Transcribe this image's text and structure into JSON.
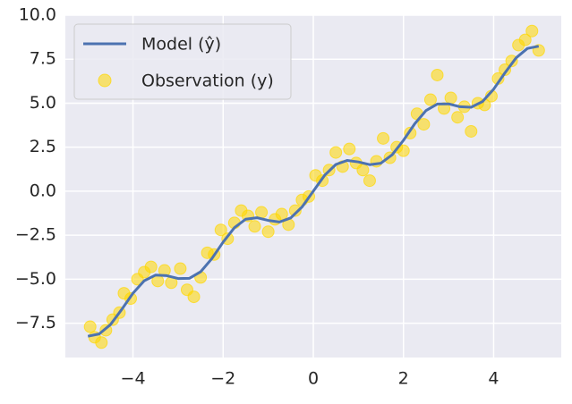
{
  "chart_data": {
    "type": "line_scatter",
    "xlim": [
      -5.5,
      5.5
    ],
    "ylim": [
      -9.45,
      10
    ],
    "xticks": [
      {
        "value": -4,
        "label": "−4"
      },
      {
        "value": -2,
        "label": "−2"
      },
      0,
      2,
      4
    ],
    "yticks": [
      {
        "value": -7.5,
        "label": "−7.5"
      },
      {
        "value": -5,
        "label": "−5.0"
      },
      {
        "value": -2.5,
        "label": "−2.5"
      },
      {
        "value": 0,
        "label": "0.0"
      },
      2.5,
      {
        "value": 5,
        "label": "5.0"
      },
      7.5,
      {
        "value": 10,
        "label": "10.0"
      }
    ],
    "grid": true,
    "legend": "upper left",
    "series": [
      {
        "name": "Model (ŷ)",
        "kind": "line",
        "color": "#4c72b0",
        "x": [
          -5,
          -4.75,
          -4.5,
          -4.25,
          -4,
          -3.75,
          -3.5,
          -3.25,
          -3,
          -2.75,
          -2.5,
          -2.25,
          -2,
          -1.75,
          -1.5,
          -1.25,
          -1,
          -0.75,
          -0.5,
          -0.25,
          0,
          0.25,
          0.5,
          0.75,
          1,
          1.25,
          1.5,
          1.75,
          2,
          2.25,
          2.5,
          2.75,
          3,
          3.25,
          3.5,
          3.75,
          4,
          4.25,
          4.5,
          4.75,
          5
        ],
        "values": [
          -8.24,
          -8.11,
          -7.58,
          -6.72,
          -5.8,
          -5.09,
          -4.77,
          -4.8,
          -4.96,
          -4.95,
          -4.58,
          -3.83,
          -2.89,
          -2.07,
          -1.59,
          -1.51,
          -1.66,
          -1.75,
          -1.52,
          -0.9,
          0,
          0.9,
          1.52,
          1.75,
          1.66,
          1.51,
          1.59,
          2.07,
          2.89,
          3.83,
          4.58,
          4.95,
          4.96,
          4.8,
          4.77,
          5.09,
          5.8,
          6.72,
          7.58,
          8.11,
          8.24
        ]
      },
      {
        "name": "Observation (y)",
        "kind": "scatter",
        "color": "#ffd700",
        "x": [
          -4.95,
          -4.85,
          -4.7,
          -4.6,
          -4.45,
          -4.3,
          -4.2,
          -4.05,
          -3.9,
          -3.75,
          -3.6,
          -3.45,
          -3.3,
          -3.15,
          -2.95,
          -2.8,
          -2.65,
          -2.5,
          -2.35,
          -2.2,
          -2.05,
          -1.9,
          -1.75,
          -1.6,
          -1.45,
          -1.3,
          -1.15,
          -1.0,
          -0.85,
          -0.7,
          -0.55,
          -0.4,
          -0.25,
          -0.1,
          0.05,
          0.2,
          0.35,
          0.5,
          0.65,
          0.8,
          0.95,
          1.1,
          1.25,
          1.4,
          1.55,
          1.7,
          1.85,
          2.0,
          2.15,
          2.3,
          2.45,
          2.6,
          2.75,
          2.9,
          3.05,
          3.2,
          3.35,
          3.5,
          3.65,
          3.8,
          3.95,
          4.1,
          4.25,
          4.4,
          4.55,
          4.7,
          4.85,
          5.0
        ],
        "values": [
          -7.7,
          -8.3,
          -8.6,
          -7.9,
          -7.3,
          -6.9,
          -5.8,
          -6.1,
          -5.0,
          -4.6,
          -4.3,
          -5.1,
          -4.5,
          -5.2,
          -4.4,
          -5.6,
          -6.0,
          -4.9,
          -3.5,
          -3.6,
          -2.2,
          -2.7,
          -1.8,
          -1.1,
          -1.4,
          -2.0,
          -1.2,
          -2.3,
          -1.6,
          -1.3,
          -1.9,
          -1.1,
          -0.5,
          -0.3,
          0.9,
          0.6,
          1.2,
          2.2,
          1.4,
          2.4,
          1.6,
          1.2,
          0.6,
          1.7,
          3.0,
          1.9,
          2.5,
          2.3,
          3.3,
          4.4,
          3.8,
          5.2,
          6.6,
          4.7,
          5.3,
          4.2,
          4.8,
          3.4,
          5.0,
          4.9,
          5.4,
          6.4,
          6.9,
          7.4,
          8.3,
          8.6,
          9.1,
          8.0
        ]
      }
    ]
  }
}
